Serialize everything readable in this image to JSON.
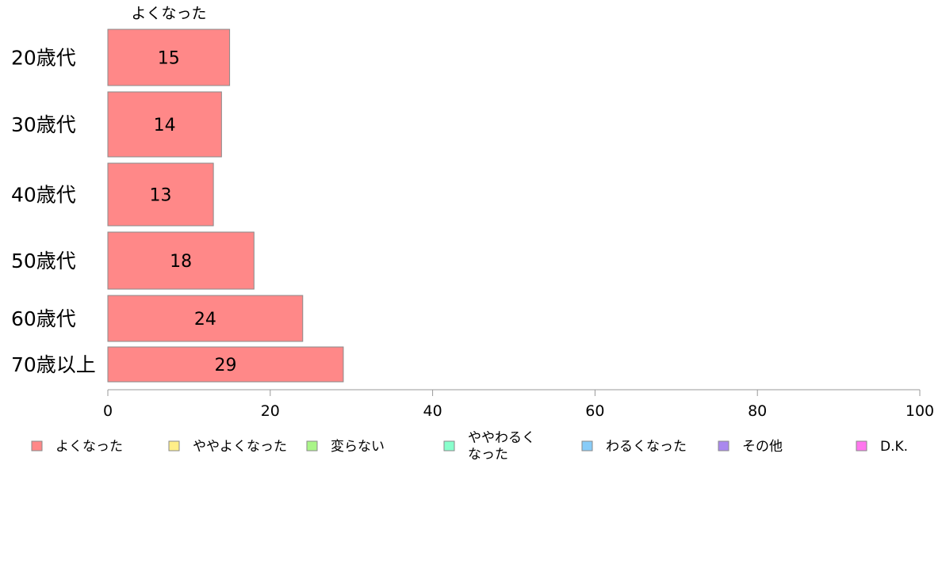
{
  "chart_data": {
    "type": "bar",
    "orientation": "horizontal",
    "stacked": true,
    "top_label": "よくなった",
    "categories": [
      "20歳代",
      "30歳代",
      "40歳代",
      "50歳代",
      "60歳代",
      "70歳以上"
    ],
    "series": [
      {
        "name": "よくなった",
        "color": "#ff8888",
        "values": [
          15,
          14,
          13,
          18,
          24,
          29
        ]
      }
    ],
    "data_labels": [
      "15",
      "14",
      "13",
      "18",
      "24",
      "29"
    ],
    "xlim": [
      0,
      100
    ],
    "xticks": [
      "0",
      "20",
      "40",
      "60",
      "80",
      "100"
    ],
    "legend": {
      "placement": "bottom",
      "items": [
        {
          "label": "よくなった",
          "color": "#ff8888"
        },
        {
          "label": "ややよくなった",
          "color": "#ffee88"
        },
        {
          "label": "変らない",
          "color": "#aaf588"
        },
        {
          "label": "ややわるく\nなった",
          "color": "#88ffcc"
        },
        {
          "label": "わるくなった",
          "color": "#88ccf8"
        },
        {
          "label": "その他",
          "color": "#aa88ee"
        },
        {
          "label": "D.K.",
          "color": "#ff77ee"
        }
      ]
    },
    "grid": false
  }
}
